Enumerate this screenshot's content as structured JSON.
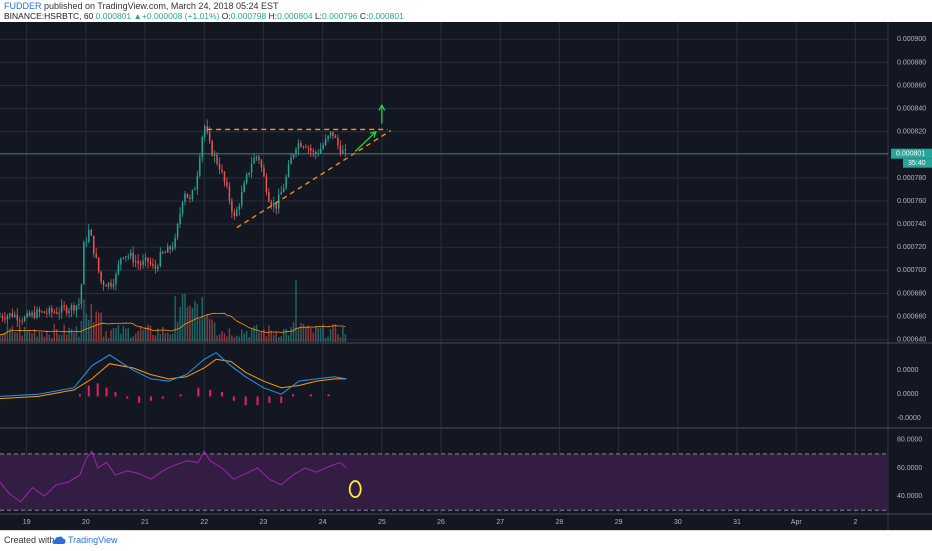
{
  "header": {
    "author": "FUDDER",
    "published_text": "published on TradingView.com, March 24, 2018 05:24 EST",
    "symbol": "BINANCE:HSRBTC, 60",
    "last": "0.000801",
    "change": "+0.000008 (+1.01%)",
    "o_label": "O:",
    "o": "0.000798",
    "h_label": "H:",
    "h": "0.000804",
    "l_label": "L:",
    "l": "0.000796",
    "c_label": "C:",
    "c": "0.000801"
  },
  "footer": {
    "created": "Created with",
    "brand": "TradingView"
  },
  "colors": {
    "bg": "#131722",
    "grid": "#2a2e39",
    "axis_text": "#b2b5be",
    "up": "#26a69a",
    "down": "#ef5350",
    "ma": "#ff9800",
    "macd": "#2196f3",
    "signal": "#ff9800",
    "hist": "#e91e63",
    "rsi": "#9c27b0",
    "rsi_band": "#3a1f48",
    "trendline": "#ff9800",
    "arrow": "#2ecc40",
    "circle": "#ffeb3b",
    "price_tag": "#26a69a"
  },
  "chart_data": [
    {
      "type": "candlestick",
      "title": "",
      "symbol": "HSRBTC",
      "exchange": "BINANCE",
      "interval": "60",
      "x_ticks": [
        "19",
        "20",
        "21",
        "22",
        "23",
        "24",
        "25",
        "26",
        "27",
        "28",
        "29",
        "30",
        "31",
        "Apr",
        "2"
      ],
      "y_ticks": [
        "0.000900",
        "0.000880",
        "0.000860",
        "0.000840",
        "0.000820",
        "0.000800",
        "0.000780",
        "0.000760",
        "0.000740",
        "0.000720",
        "0.000700",
        "0.000680",
        "0.000660",
        "0.000640"
      ],
      "ylim": [
        0.000638,
        0.000915
      ],
      "current_price_label": "0.000801",
      "countdown_label": "35:40",
      "last_price": 0.000801,
      "series_path": [
        [
          18.55,
          0.00066
        ],
        [
          18.8,
          0.000662
        ],
        [
          19.0,
          0.000658
        ],
        [
          19.2,
          0.000663
        ],
        [
          19.5,
          0.000664
        ],
        [
          19.8,
          0.000668
        ],
        [
          19.95,
          0.000672
        ],
        [
          20.0,
          0.00072
        ],
        [
          20.1,
          0.000735
        ],
        [
          20.2,
          0.000712
        ],
        [
          20.3,
          0.00069
        ],
        [
          20.45,
          0.000688
        ],
        [
          20.55,
          0.000695
        ],
        [
          20.65,
          0.000715
        ],
        [
          20.8,
          0.000712
        ],
        [
          20.95,
          0.000705
        ],
        [
          21.1,
          0.000708
        ],
        [
          21.2,
          0.0007
        ],
        [
          21.3,
          0.000712
        ],
        [
          21.45,
          0.000718
        ],
        [
          21.55,
          0.000725
        ],
        [
          21.6,
          0.00074
        ],
        [
          21.7,
          0.00077
        ],
        [
          21.8,
          0.00076
        ],
        [
          21.9,
          0.000775
        ],
        [
          22.0,
          0.000815
        ],
        [
          22.05,
          0.000825
        ],
        [
          22.15,
          0.000805
        ],
        [
          22.3,
          0.00079
        ],
        [
          22.45,
          0.000765
        ],
        [
          22.55,
          0.000745
        ],
        [
          22.7,
          0.00077
        ],
        [
          22.85,
          0.000795
        ],
        [
          22.95,
          0.0008
        ],
        [
          23.05,
          0.00078
        ],
        [
          23.15,
          0.00076
        ],
        [
          23.25,
          0.000755
        ],
        [
          23.4,
          0.000775
        ],
        [
          23.5,
          0.000795
        ],
        [
          23.6,
          0.00081
        ],
        [
          23.75,
          0.00081
        ],
        [
          23.9,
          0.0008
        ],
        [
          24.0,
          0.000805
        ],
        [
          24.1,
          0.000812
        ],
        [
          24.2,
          0.00082
        ],
        [
          24.3,
          0.000808
        ],
        [
          24.4,
          0.000801
        ]
      ],
      "annotations": {
        "resistance": {
          "x": [
            22.05,
            25.1
          ],
          "y": 0.000822
        },
        "support": {
          "x": [
            22.55,
            25.15
          ],
          "y": [
            0.000737,
            0.000821
          ]
        },
        "arrow_up": {
          "x": 25.0,
          "y": [
            0.000827,
            0.000843
          ]
        },
        "arrow_diag": {
          "x": [
            24.55,
            24.9
          ],
          "y": [
            0.000803,
            0.00082
          ]
        }
      }
    },
    {
      "type": "bar",
      "title": "",
      "name": "Volume",
      "note": "volume bars with moving average overlay"
    },
    {
      "type": "line",
      "title": "",
      "name": "MACD",
      "y_ticks": [
        "0.0000",
        "0.0000",
        "-0.0000"
      ],
      "ylim": [
        -1.4,
        2.4
      ],
      "macd_line": [
        [
          18.55,
          0.0
        ],
        [
          19.2,
          0.1
        ],
        [
          19.8,
          0.4
        ],
        [
          20.1,
          1.4
        ],
        [
          20.4,
          1.9
        ],
        [
          20.8,
          1.2
        ],
        [
          21.1,
          0.8
        ],
        [
          21.4,
          0.7
        ],
        [
          21.7,
          1.0
        ],
        [
          22.0,
          1.7
        ],
        [
          22.2,
          2.0
        ],
        [
          22.45,
          1.4
        ],
        [
          22.7,
          0.9
        ],
        [
          23.0,
          0.4
        ],
        [
          23.3,
          0.1
        ],
        [
          23.6,
          0.7
        ],
        [
          23.9,
          0.8
        ],
        [
          24.2,
          0.9
        ],
        [
          24.4,
          0.8
        ]
      ],
      "signal_line": [
        [
          18.55,
          -0.1
        ],
        [
          19.2,
          0.0
        ],
        [
          19.8,
          0.3
        ],
        [
          20.1,
          0.8
        ],
        [
          20.4,
          1.5
        ],
        [
          20.8,
          1.3
        ],
        [
          21.1,
          1.0
        ],
        [
          21.4,
          0.8
        ],
        [
          21.7,
          0.9
        ],
        [
          22.0,
          1.3
        ],
        [
          22.2,
          1.7
        ],
        [
          22.45,
          1.6
        ],
        [
          22.7,
          1.1
        ],
        [
          23.0,
          0.7
        ],
        [
          23.3,
          0.4
        ],
        [
          23.6,
          0.5
        ],
        [
          23.9,
          0.7
        ],
        [
          24.2,
          0.8
        ],
        [
          24.4,
          0.8
        ]
      ],
      "histogram": [
        [
          19.9,
          0.1
        ],
        [
          20.05,
          0.5
        ],
        [
          20.2,
          0.6
        ],
        [
          20.35,
          0.4
        ],
        [
          20.5,
          0.2
        ],
        [
          20.7,
          -0.1
        ],
        [
          20.9,
          -0.3
        ],
        [
          21.1,
          -0.2
        ],
        [
          21.3,
          -0.1
        ],
        [
          21.6,
          0.1
        ],
        [
          21.9,
          0.4
        ],
        [
          22.1,
          0.3
        ],
        [
          22.3,
          0.2
        ],
        [
          22.5,
          -0.2
        ],
        [
          22.7,
          -0.4
        ],
        [
          22.9,
          -0.4
        ],
        [
          23.1,
          -0.3
        ],
        [
          23.3,
          -0.3
        ],
        [
          23.5,
          0.1
        ],
        [
          23.8,
          0.1
        ],
        [
          24.1,
          0.1
        ]
      ]
    },
    {
      "type": "line",
      "title": "",
      "name": "RSI",
      "y_ticks": [
        "80.0000",
        "60.0000",
        "40.0000"
      ],
      "ylim": [
        28,
        87
      ],
      "band": [
        30,
        70
      ],
      "values": [
        [
          18.55,
          50
        ],
        [
          18.7,
          42
        ],
        [
          18.9,
          36
        ],
        [
          19.1,
          46
        ],
        [
          19.3,
          40
        ],
        [
          19.5,
          48
        ],
        [
          19.7,
          50
        ],
        [
          19.9,
          55
        ],
        [
          20.0,
          66
        ],
        [
          20.1,
          72
        ],
        [
          20.2,
          60
        ],
        [
          20.35,
          64
        ],
        [
          20.5,
          55
        ],
        [
          20.7,
          58
        ],
        [
          20.9,
          56
        ],
        [
          21.1,
          52
        ],
        [
          21.3,
          58
        ],
        [
          21.5,
          62
        ],
        [
          21.7,
          65
        ],
        [
          21.9,
          64
        ],
        [
          22.0,
          72
        ],
        [
          22.1,
          65
        ],
        [
          22.3,
          60
        ],
        [
          22.5,
          52
        ],
        [
          22.7,
          56
        ],
        [
          22.9,
          60
        ],
        [
          23.1,
          52
        ],
        [
          23.3,
          48
        ],
        [
          23.5,
          55
        ],
        [
          23.7,
          60
        ],
        [
          23.9,
          57
        ],
        [
          24.1,
          61
        ],
        [
          24.3,
          64
        ],
        [
          24.4,
          60
        ]
      ]
    }
  ]
}
